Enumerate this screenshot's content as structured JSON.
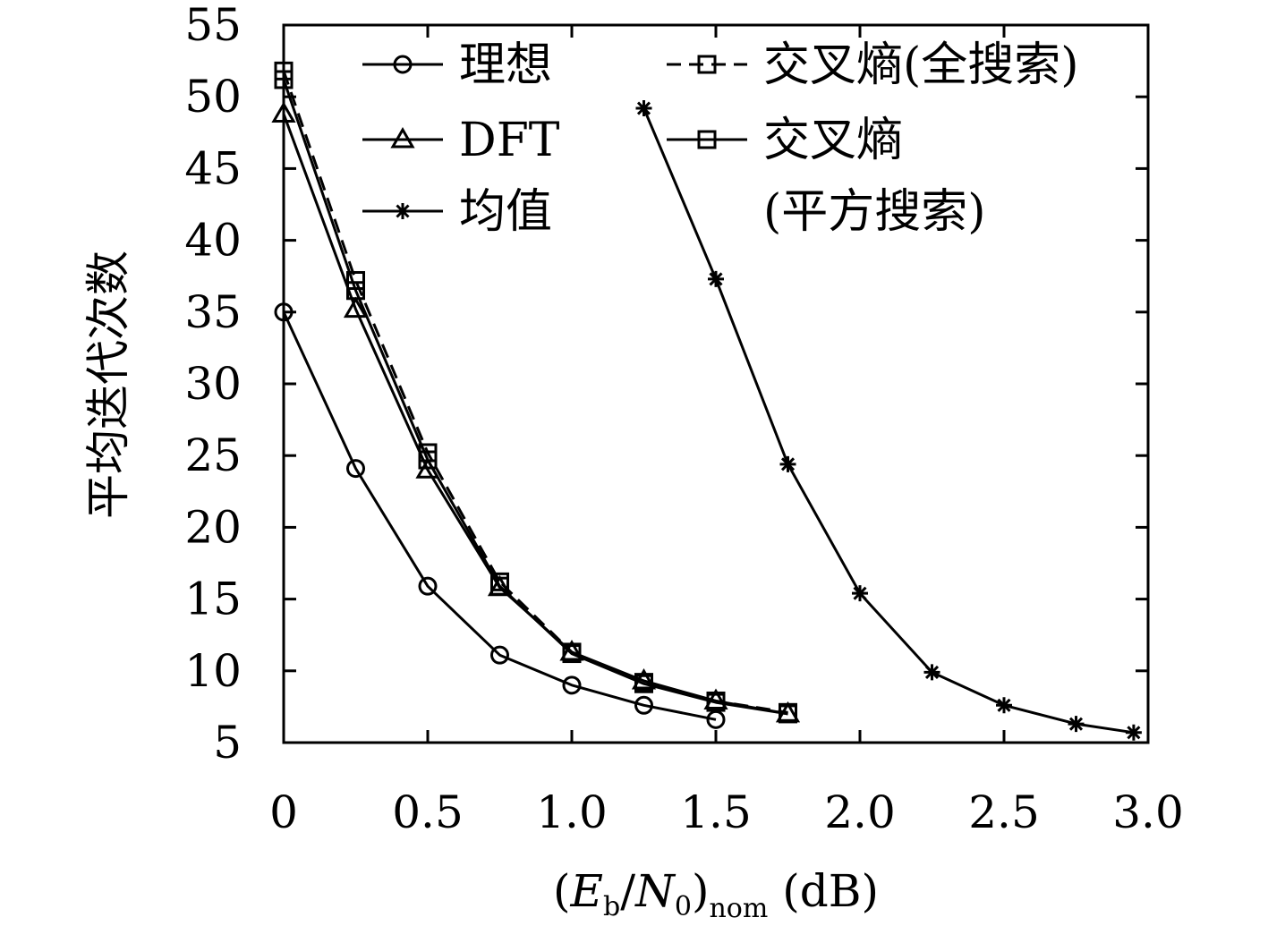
{
  "chart_data": {
    "type": "line",
    "xlabel": "(E_b/N_0)_nom (dB)",
    "xlabel_parts": {
      "open": "(",
      "e": "E",
      "e_sub": "b",
      "slash": "/",
      "n": "N",
      "n_sub": "0",
      "close": ")",
      "nom_sub": "nom",
      "unit": " (dB)"
    },
    "ylabel": "平均迭代次数",
    "xlim": [
      0,
      3.0
    ],
    "ylim": [
      5,
      55
    ],
    "x_ticks": [
      "0",
      "0.5",
      "1.0",
      "1.5",
      "2.0",
      "2.5",
      "3.0"
    ],
    "x_tick_values": [
      0,
      0.5,
      1.0,
      1.5,
      2.0,
      2.5,
      3.0
    ],
    "y_ticks": [
      "5",
      "10",
      "15",
      "20",
      "25",
      "30",
      "35",
      "40",
      "45",
      "50",
      "55"
    ],
    "y_tick_values": [
      5,
      10,
      15,
      20,
      25,
      30,
      35,
      40,
      45,
      50,
      55
    ],
    "grid": false,
    "legend_position": "top",
    "series": [
      {
        "name": "理想",
        "marker": "circle",
        "dash": "solid",
        "x": [
          0,
          0.25,
          0.5,
          0.75,
          1.0,
          1.25,
          1.5
        ],
        "y": [
          35.0,
          24.1,
          15.9,
          11.1,
          9.0,
          7.6,
          6.6
        ]
      },
      {
        "name": "DFT",
        "marker": "triangle",
        "dash": "solid",
        "x": [
          0,
          0.25,
          0.5,
          0.75,
          1.0,
          1.25,
          1.5,
          1.75
        ],
        "y": [
          48.8,
          35.2,
          24.0,
          15.8,
          11.3,
          9.3,
          7.9,
          7.0
        ]
      },
      {
        "name": "均值",
        "marker": "star",
        "dash": "solid",
        "x": [
          1.25,
          1.5,
          1.75,
          2.0,
          2.25,
          2.5,
          2.75,
          2.95
        ],
        "y": [
          49.2,
          37.3,
          24.4,
          15.4,
          9.9,
          7.6,
          6.3,
          5.7
        ]
      },
      {
        "name": "交叉熵(全搜索)",
        "marker": "square",
        "dash": "dashed",
        "x": [
          0,
          0.25,
          0.5,
          0.75,
          1.0,
          1.25,
          1.5,
          1.75
        ],
        "y": [
          51.8,
          37.2,
          25.2,
          16.2,
          11.3,
          9.2,
          7.9,
          7.1
        ]
      },
      {
        "name": "交叉熵(平方搜索)",
        "legend_lines": [
          "交叉熵",
          "(平方搜索)"
        ],
        "marker": "square",
        "dash": "solid",
        "x": [
          0,
          0.25,
          0.5,
          0.75,
          1.0,
          1.25,
          1.5,
          1.75
        ],
        "y": [
          51.2,
          36.5,
          24.7,
          15.9,
          11.2,
          9.1,
          7.8,
          7.0
        ]
      }
    ],
    "colors": {
      "line": "#000000",
      "background": "#ffffff"
    }
  }
}
